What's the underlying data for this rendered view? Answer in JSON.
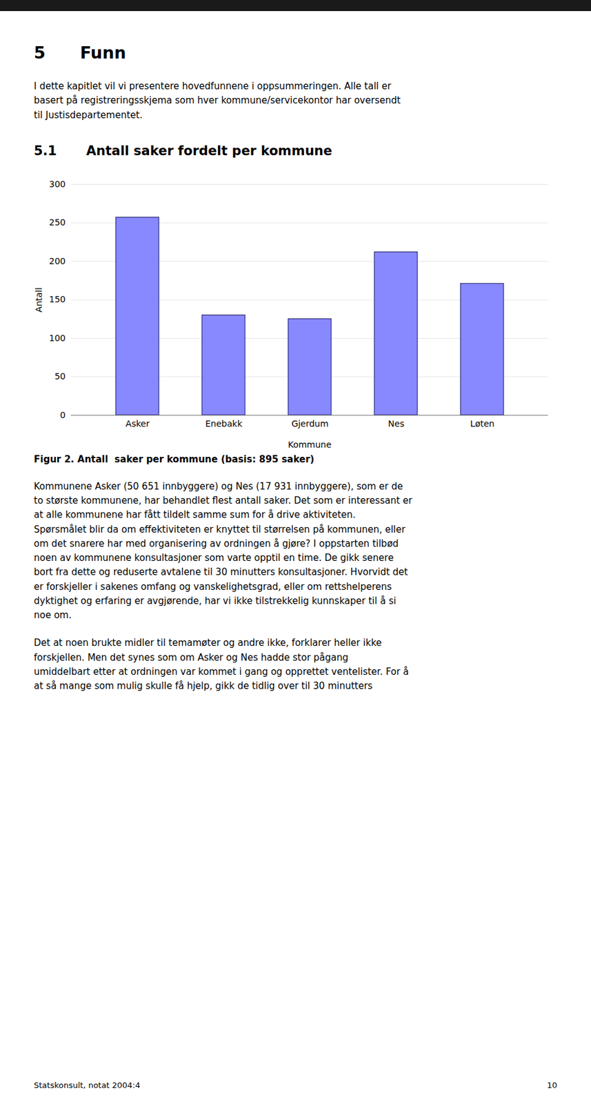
{
  "heading_number": "5",
  "heading_text": "Funn",
  "intro_text": "I dette kapitlet vil vi presentere hovedfunnene i oppsummeringen. Alle tall er\nbasert på registreringsskjema som hver kommune/servicekontor har oversendt\ntil Justisdepartementet.",
  "section_number": "5.1",
  "section_title": "Antall saker fordelt per kommune",
  "body_text": [
    "Kommunene Asker (50 651 innbyggere) og Nes (17 931 innbyggere), som er de\nto største kommunene, har behandlet flest antall saker. Det som er interessant er\nat alle kommunene har fått tildelt samme sum for å drive aktiviteten.\nSpørsmålet blir da om effektiviteten er knyttet til størrelsen på kommunen, eller\nom det snarere har med organisering av ordningen å gjøre? I oppstarten tilbød\nnoen av kommunene konsultasjoner som varte opptil en time. De gikk senere\nbort fra dette og reduserte avtalene til 30 minutters konsultasjoner. Hvorvidt det\ner forskjeller i sakenes omfang og vanskelighetsgrad, eller om rettshelperens\ndyktighet og erfaring er avgjørende, har vi ikke tilstrekkelig kunnskaper til å si\nnoe om.",
    "Det at noen brukte midler til temamøter og andre ikke, forklarer heller ikke\nforskjellen. Men det synes som om Asker og Nes hadde stor pågang\numiddelbart etter at ordningen var kommet i gang og opprettet ventelister. For å\nat så mange som mulig skulle få hjelp, gikk de tidlig over til 30 minutters"
  ],
  "footer_left": "Statskonsult, notat 2004:4",
  "footer_right": "10",
  "chart_data": {
    "type": "bar",
    "caption": "Figur 2. Antall  saker per kommune (basis: 895 saker)",
    "categories": [
      "Asker",
      "Enebakk",
      "Gjerdum",
      "Nes",
      "Løten"
    ],
    "values": [
      257,
      130,
      125,
      212,
      171
    ],
    "color": "#8888ff",
    "xlabel": "Kommune",
    "ylabel": "Antall",
    "ylim": [
      0,
      300
    ],
    "yticks": [
      0,
      50,
      100,
      150,
      200,
      250,
      300
    ],
    "grid": true
  }
}
